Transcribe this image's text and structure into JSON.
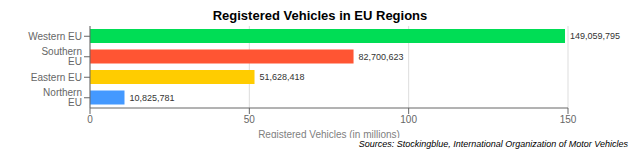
{
  "chart_data": {
    "type": "bar",
    "title": "Registered Vehicles in EU Regions",
    "orientation": "horizontal",
    "categories": [
      "Western EU",
      "Southern EU",
      "Eastern EU",
      "Northern EU"
    ],
    "values": [
      149.059795,
      82.700623,
      51.628418,
      10.825781
    ],
    "value_labels": [
      "149,059,795",
      "82,700,623",
      "51,628,418",
      "10,825,781"
    ],
    "colors": [
      "#00dd55",
      "#ff5533",
      "#ffcc00",
      "#4499ff"
    ],
    "xlabel": "Registered Vehicles (in millions)",
    "xlim": [
      0,
      150
    ],
    "xticks": [
      0,
      50,
      100,
      150
    ],
    "grid": true,
    "data_labels": true,
    "annotations": [
      "Sources: Stockingblue,  International Organization of Motor Vehicles"
    ]
  }
}
